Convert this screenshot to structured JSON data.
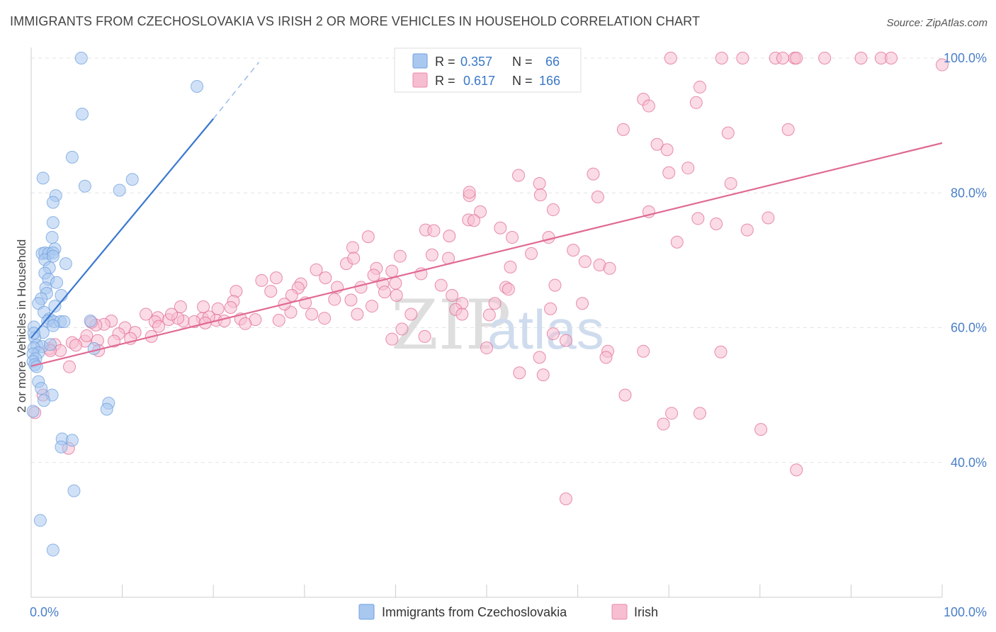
{
  "title": "IMMIGRANTS FROM CZECHOSLOVAKIA VS IRISH 2 OR MORE VEHICLES IN HOUSEHOLD CORRELATION CHART",
  "source": "Source: ZipAtlas.com",
  "watermark": {
    "zip": "ZIP",
    "atlas": "atlas"
  },
  "legend": {
    "rows": [
      {
        "r_label": "R =",
        "r_value": "0.357",
        "n_label": "N =",
        "n_value": "66",
        "color": "#a9c8f0",
        "stroke": "#6e9fdd"
      },
      {
        "r_label": "R =",
        "r_value": "0.617",
        "n_label": "N =",
        "n_value": "166",
        "color": "#f7bdd0",
        "stroke": "#e88aaa"
      }
    ]
  },
  "bottom_legend": [
    {
      "label": "Immigrants from Czechoslovakia",
      "color": "#a9c8f0",
      "stroke": "#6e9fdd"
    },
    {
      "label": "Irish",
      "color": "#f7bdd0",
      "stroke": "#e88aaa"
    }
  ],
  "chart_data": {
    "type": "scatter",
    "title": "IMMIGRANTS FROM CZECHOSLOVAKIA VS IRISH 2 OR MORE VEHICLES IN HOUSEHOLD CORRELATION CHART",
    "xlabel": "",
    "ylabel": "2 or more Vehicles in Household",
    "xlim": [
      0,
      100
    ],
    "ylim": [
      20,
      102
    ],
    "x_tick_labels": [
      "0.0%",
      "100.0%"
    ],
    "y_ticks": [
      40,
      60,
      80,
      100
    ],
    "y_tick_labels": [
      "40.0%",
      "60.0%",
      "80.0%",
      "100.0%"
    ],
    "grid": true,
    "series": [
      {
        "name": "Immigrants from Czechoslovakia",
        "color": "#6e9fdd",
        "fill": "#a9c8f0",
        "trend": {
          "x0": 0.0,
          "y0": 58.5,
          "x1": 20.0,
          "y1": 91.0,
          "dash_to_x": 25.0,
          "dash_to_y": 99.4
        },
        "points": [
          [
            5.5,
            100
          ],
          [
            18.2,
            95.8
          ],
          [
            5.6,
            91.7
          ],
          [
            4.5,
            85.3
          ],
          [
            1.3,
            82.2
          ],
          [
            11.1,
            82
          ],
          [
            5.9,
            81
          ],
          [
            9.7,
            80.4
          ],
          [
            2.7,
            79.6
          ],
          [
            2.4,
            78.6
          ],
          [
            2.4,
            75.6
          ],
          [
            2.3,
            73.4
          ],
          [
            2.6,
            71.7
          ],
          [
            1.2,
            71
          ],
          [
            1.5,
            71.1
          ],
          [
            1.9,
            71
          ],
          [
            2.4,
            71.1
          ],
          [
            1.5,
            70.1
          ],
          [
            2.4,
            70.6
          ],
          [
            3.8,
            69.5
          ],
          [
            2.0,
            68.9
          ],
          [
            1.5,
            68.1
          ],
          [
            1.9,
            67.2
          ],
          [
            2.8,
            66.7
          ],
          [
            1.6,
            65.9
          ],
          [
            1.7,
            65.1
          ],
          [
            3.3,
            64.8
          ],
          [
            1.1,
            64.3
          ],
          [
            0.8,
            63.6
          ],
          [
            2.6,
            63.2
          ],
          [
            1.4,
            62.3
          ],
          [
            2.0,
            61.3
          ],
          [
            1.8,
            61.0
          ],
          [
            2.5,
            60.9
          ],
          [
            3.2,
            60.9
          ],
          [
            3.6,
            60.9
          ],
          [
            6.5,
            61.0
          ],
          [
            0.3,
            60.1
          ],
          [
            2.4,
            60.3
          ],
          [
            1.3,
            59.3
          ],
          [
            0.4,
            58.5
          ],
          [
            0.6,
            57.4
          ],
          [
            1.2,
            57.2
          ],
          [
            0.3,
            57.0
          ],
          [
            0.8,
            56.3
          ],
          [
            6.9,
            56.9
          ],
          [
            2.1,
            57.5
          ],
          [
            0.2,
            56.1
          ],
          [
            0.5,
            55.4
          ],
          [
            0.2,
            55.0
          ],
          [
            0.4,
            54.5
          ],
          [
            0.6,
            54.2
          ],
          [
            0.8,
            52.0
          ],
          [
            1.1,
            51.0
          ],
          [
            2.3,
            50.0
          ],
          [
            1.4,
            49.2
          ],
          [
            8.5,
            48.8
          ],
          [
            8.3,
            47.9
          ],
          [
            0.2,
            47.6
          ],
          [
            3.4,
            43.5
          ],
          [
            4.5,
            43.3
          ],
          [
            3.3,
            42.3
          ],
          [
            4.7,
            35.8
          ],
          [
            1.0,
            31.4
          ],
          [
            2.4,
            27.0
          ],
          [
            0.3,
            59.2
          ]
        ]
      },
      {
        "name": "Irish",
        "color": "#e06a94",
        "fill": "#f7bdd0",
        "trend": {
          "x0": 0.0,
          "y0": 54.3,
          "x1": 100.0,
          "y1": 87.4
        },
        "points": [
          [
            70.2,
            100
          ],
          [
            75.8,
            100
          ],
          [
            78.1,
            100
          ],
          [
            81.7,
            100
          ],
          [
            82.5,
            100
          ],
          [
            83.8,
            100
          ],
          [
            84.0,
            100
          ],
          [
            87.1,
            100
          ],
          [
            91.1,
            100
          ],
          [
            93.3,
            100
          ],
          [
            94.4,
            100
          ],
          [
            100,
            99
          ],
          [
            73.4,
            95.7
          ],
          [
            67.2,
            93.9
          ],
          [
            67.8,
            92.9
          ],
          [
            73.0,
            93.4
          ],
          [
            65.0,
            89.4
          ],
          [
            83.1,
            89.4
          ],
          [
            76.5,
            88.9
          ],
          [
            68.7,
            87.2
          ],
          [
            69.8,
            86.4
          ],
          [
            61.7,
            82.8
          ],
          [
            72.1,
            83.7
          ],
          [
            70.0,
            83.0
          ],
          [
            53.5,
            82.6
          ],
          [
            55.8,
            81.4
          ],
          [
            76.8,
            81.4
          ],
          [
            48.1,
            79.6
          ],
          [
            48.1,
            80.1
          ],
          [
            55.9,
            79.7
          ],
          [
            62.2,
            79.4
          ],
          [
            57.3,
            77.5
          ],
          [
            49.3,
            77.2
          ],
          [
            67.8,
            77.2
          ],
          [
            48.0,
            76.0
          ],
          [
            48.6,
            75.9
          ],
          [
            73.2,
            76.2
          ],
          [
            80.9,
            76.3
          ],
          [
            75.2,
            75.4
          ],
          [
            78.6,
            74.5
          ],
          [
            43.3,
            74.5
          ],
          [
            51.5,
            74.8
          ],
          [
            52.8,
            73.4
          ],
          [
            44.2,
            74.4
          ],
          [
            45.9,
            73.6
          ],
          [
            37.0,
            73.5
          ],
          [
            56.8,
            73.4
          ],
          [
            70.9,
            72.7
          ],
          [
            35.3,
            71.9
          ],
          [
            59.5,
            71.5
          ],
          [
            54.9,
            71.0
          ],
          [
            44.0,
            70.8
          ],
          [
            60.8,
            69.8
          ],
          [
            45.8,
            70.3
          ],
          [
            40.5,
            70.6
          ],
          [
            34.6,
            69.5
          ],
          [
            35.4,
            70.3
          ],
          [
            37.9,
            68.8
          ],
          [
            31.3,
            68.6
          ],
          [
            52.6,
            69.0
          ],
          [
            62.4,
            69.3
          ],
          [
            39.6,
            68.4
          ],
          [
            26.9,
            67.4
          ],
          [
            37.6,
            67.8
          ],
          [
            42.8,
            68.0
          ],
          [
            63.5,
            68.8
          ],
          [
            32.3,
            67.4
          ],
          [
            25.3,
            67.0
          ],
          [
            29.6,
            66.5
          ],
          [
            38.6,
            66.5
          ],
          [
            36.2,
            66.0
          ],
          [
            52.1,
            66.0
          ],
          [
            29.3,
            65.9
          ],
          [
            40.0,
            66.6
          ],
          [
            33.6,
            66.0
          ],
          [
            57.5,
            66.3
          ],
          [
            45.0,
            66.3
          ],
          [
            52.4,
            65.7
          ],
          [
            22.5,
            65.4
          ],
          [
            26.3,
            65.4
          ],
          [
            38.8,
            65.3
          ],
          [
            28.6,
            64.8
          ],
          [
            46.2,
            64.8
          ],
          [
            40.1,
            64.8
          ],
          [
            33.3,
            64.2
          ],
          [
            35.1,
            64.1
          ],
          [
            22.2,
            63.9
          ],
          [
            30.1,
            63.7
          ],
          [
            37.4,
            63.2
          ],
          [
            47.3,
            63.6
          ],
          [
            50.9,
            63.6
          ],
          [
            60.5,
            63.6
          ],
          [
            20.5,
            62.8
          ],
          [
            28.5,
            62.3
          ],
          [
            30.8,
            62.0
          ],
          [
            27.8,
            63.5
          ],
          [
            46.6,
            62.7
          ],
          [
            57.0,
            62.8
          ],
          [
            47.3,
            62.0
          ],
          [
            41.7,
            62.0
          ],
          [
            35.8,
            62.0
          ],
          [
            12.6,
            62.0
          ],
          [
            13.9,
            61.5
          ],
          [
            18.8,
            61.4
          ],
          [
            16.7,
            61.0
          ],
          [
            15.1,
            61.2
          ],
          [
            17.9,
            60.9
          ],
          [
            23.0,
            61.3
          ],
          [
            20.3,
            61.1
          ],
          [
            21.2,
            61.0
          ],
          [
            19.5,
            61.6
          ],
          [
            24.6,
            61.2
          ],
          [
            23.5,
            60.6
          ],
          [
            13.6,
            60.9
          ],
          [
            8.8,
            61.0
          ],
          [
            8.0,
            60.5
          ],
          [
            7.1,
            60.4
          ],
          [
            10.3,
            60.0
          ],
          [
            14.0,
            60.2
          ],
          [
            11.4,
            59.3
          ],
          [
            19.1,
            60.7
          ],
          [
            16.1,
            61.4
          ],
          [
            27.2,
            61.1
          ],
          [
            16.4,
            63.1
          ],
          [
            18.9,
            63.1
          ],
          [
            21.9,
            63.0
          ],
          [
            15.4,
            62.0
          ],
          [
            6.6,
            60.8
          ],
          [
            9.6,
            59.1
          ],
          [
            13.2,
            58.7
          ],
          [
            10.9,
            58.4
          ],
          [
            7.3,
            58.1
          ],
          [
            5.9,
            58.0
          ],
          [
            4.5,
            57.8
          ],
          [
            2.0,
            56.9
          ],
          [
            2.6,
            57.5
          ],
          [
            4.9,
            57.4
          ],
          [
            6.1,
            58.8
          ],
          [
            9.1,
            58.0
          ],
          [
            7.4,
            56.6
          ],
          [
            3.2,
            56.6
          ],
          [
            4.2,
            54.2
          ],
          [
            2.1,
            56.6
          ],
          [
            32.2,
            61.4
          ],
          [
            50.3,
            61.9
          ],
          [
            40.7,
            59.8
          ],
          [
            43.2,
            58.7
          ],
          [
            39.6,
            58.3
          ],
          [
            50.0,
            57.0
          ],
          [
            63.3,
            56.5
          ],
          [
            58.7,
            58.1
          ],
          [
            55.8,
            55.6
          ],
          [
            56.2,
            53.0
          ],
          [
            63.1,
            55.6
          ],
          [
            53.6,
            53.3
          ],
          [
            57.3,
            59.1
          ],
          [
            65.2,
            50.0
          ],
          [
            67.2,
            56.5
          ],
          [
            73.4,
            47.3
          ],
          [
            70.3,
            47.3
          ],
          [
            69.4,
            45.7
          ],
          [
            75.7,
            56.4
          ],
          [
            80.1,
            44.9
          ],
          [
            84.0,
            38.9
          ],
          [
            58.7,
            34.6
          ],
          [
            4.1,
            42.1
          ],
          [
            0.4,
            47.4
          ],
          [
            1.3,
            50.0
          ]
        ]
      }
    ]
  }
}
